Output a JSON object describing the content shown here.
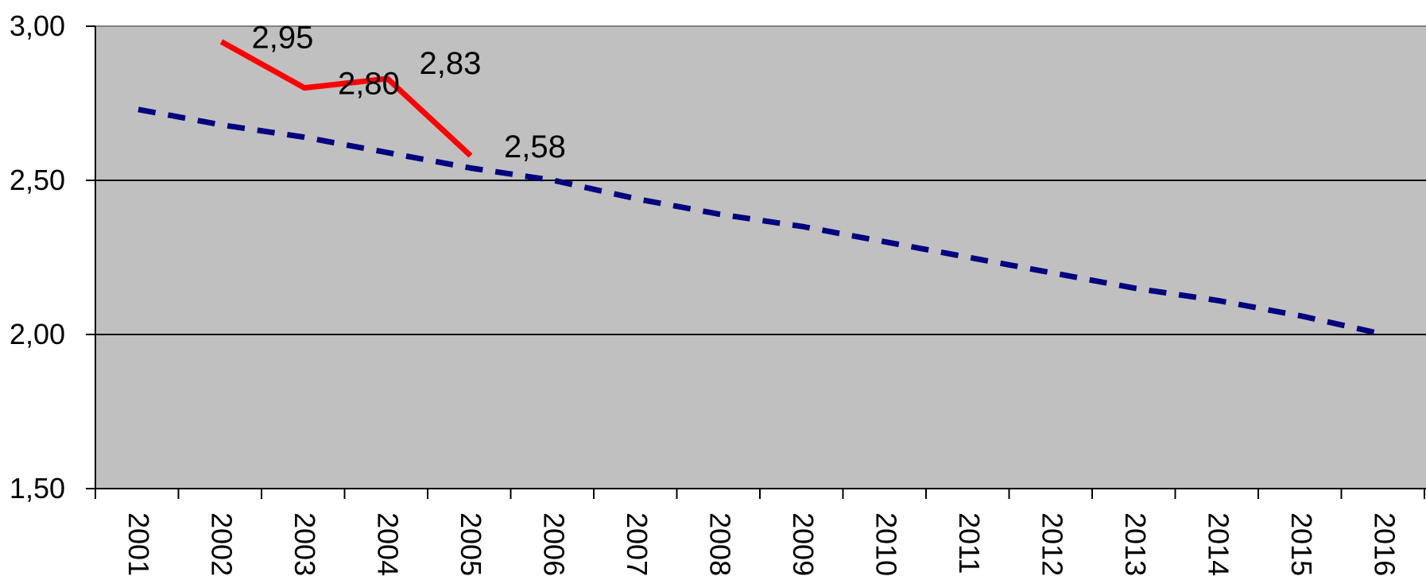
{
  "chart_data": {
    "type": "line",
    "title": "",
    "xlabel": "",
    "ylabel": "",
    "x": [
      "2001",
      "2002",
      "2003",
      "2004",
      "2005",
      "2006",
      "2007",
      "2008",
      "2009",
      "2010",
      "2011",
      "2012",
      "2013",
      "2014",
      "2015",
      "2016"
    ],
    "ylim": [
      1.5,
      3.0
    ],
    "y_ticks": [
      "1,50",
      "2,00",
      "2,50",
      "3,00"
    ],
    "grid": true,
    "plot_background": "#c0c0c0",
    "series": [
      {
        "color": "#ff0000",
        "style": "solid",
        "values": [
          null,
          2.95,
          2.8,
          2.83,
          2.58,
          null,
          null,
          null,
          null,
          null,
          null,
          null,
          null,
          null,
          null,
          null
        ],
        "data_labels": [
          null,
          "2,95",
          "2,80",
          "2,83",
          "2,58",
          null,
          null,
          null,
          null,
          null,
          null,
          null,
          null,
          null,
          null,
          null
        ]
      },
      {
        "color": "#000080",
        "style": "dashed",
        "values": [
          2.73,
          2.68,
          2.64,
          2.59,
          2.54,
          2.5,
          2.44,
          2.39,
          2.35,
          2.3,
          2.25,
          2.2,
          2.15,
          2.11,
          2.06,
          2.0
        ]
      }
    ]
  }
}
